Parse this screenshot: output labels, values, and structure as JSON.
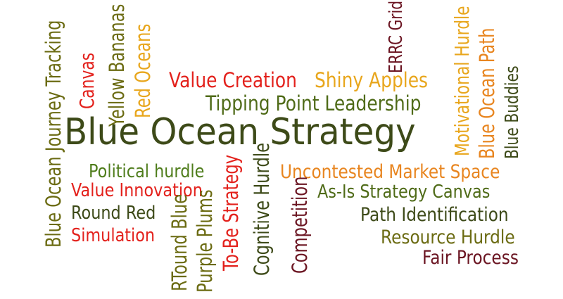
{
  "colors": {
    "olive": "#5a6b12",
    "dark_olive": "#3d4a18",
    "dark_red": "#6b1522",
    "red": "#e3211c",
    "orange": "#e8851f",
    "yellow": "#e8a61c",
    "green": "#4f7d1c"
  },
  "words": [
    {
      "key": "blue_ocean_strategy",
      "text": "Blue Ocean Strategy",
      "color": "#3d4a18",
      "orientation": "horizontal"
    },
    {
      "key": "value_creation",
      "text": "Value Creation",
      "color": "#e3211c",
      "orientation": "horizontal"
    },
    {
      "key": "shiny_apples",
      "text": "Shiny Apples",
      "color": "#e8a61c",
      "orientation": "horizontal"
    },
    {
      "key": "tipping_point_leadership",
      "text": "Tipping Point Leadership",
      "color": "#4f6b18",
      "orientation": "horizontal"
    },
    {
      "key": "political_hurdle",
      "text": "Political hurdle",
      "color": "#4f7d1c",
      "orientation": "horizontal"
    },
    {
      "key": "value_innovation",
      "text": "Value Innovation",
      "color": "#e3211c",
      "orientation": "horizontal"
    },
    {
      "key": "round_red",
      "text": "Round Red",
      "color": "#3d4a18",
      "orientation": "horizontal"
    },
    {
      "key": "simulation",
      "text": "Simulation",
      "color": "#e3211c",
      "orientation": "horizontal"
    },
    {
      "key": "uncontested_market_space",
      "text": "Uncontested Market Space",
      "color": "#e8851f",
      "orientation": "horizontal"
    },
    {
      "key": "as_is_strategy_canvas",
      "text": "As-Is Strategy Canvas",
      "color": "#4f6b18",
      "orientation": "horizontal"
    },
    {
      "key": "path_identification",
      "text": "Path Identification",
      "color": "#3d4a18",
      "orientation": "horizontal"
    },
    {
      "key": "resource_hurdle",
      "text": "Resource Hurdle",
      "color": "#6b6b12",
      "orientation": "horizontal"
    },
    {
      "key": "fair_process",
      "text": "Fair Process",
      "color": "#6b1522",
      "orientation": "horizontal"
    },
    {
      "key": "blue_ocean_journey_tracking",
      "text": "Blue Ocean Journey Tracking",
      "color": "#6b6b12",
      "orientation": "vertical"
    },
    {
      "key": "canvas",
      "text": "Canvas",
      "color": "#e3211c",
      "orientation": "vertical"
    },
    {
      "key": "yellow_bananas",
      "text": "Yellow Bananas",
      "color": "#6b6b12",
      "orientation": "vertical"
    },
    {
      "key": "red_oceans",
      "text": "Red Oceans",
      "color": "#e8a61c",
      "orientation": "vertical"
    },
    {
      "key": "erro_grid",
      "text": "ERRC Grid",
      "color": "#6b1522",
      "orientation": "vertical"
    },
    {
      "key": "motivational_hurdle",
      "text": "Motivational Hurdle",
      "color": "#e8a61c",
      "orientation": "vertical"
    },
    {
      "key": "blue_ocean_path",
      "text": "Blue Ocean Path",
      "color": "#e8851f",
      "orientation": "vertical"
    },
    {
      "key": "blue_buddies",
      "text": "Blue Buddies",
      "color": "#3d4a18",
      "orientation": "vertical"
    },
    {
      "key": "rtound_blue",
      "text": "RTound Blue",
      "color": "#6b6b12",
      "orientation": "vertical"
    },
    {
      "key": "purple_plums",
      "text": "Purple Plums",
      "color": "#6b6b12",
      "orientation": "vertical"
    },
    {
      "key": "to_be_strategy",
      "text": "To-Be Strategy",
      "color": "#e3211c",
      "orientation": "vertical"
    },
    {
      "key": "cognitive_hurdle",
      "text": "Cognitive Hurdle",
      "color": "#3d4a18",
      "orientation": "vertical"
    },
    {
      "key": "competition",
      "text": "Competition",
      "color": "#6b1522",
      "orientation": "vertical"
    }
  ]
}
